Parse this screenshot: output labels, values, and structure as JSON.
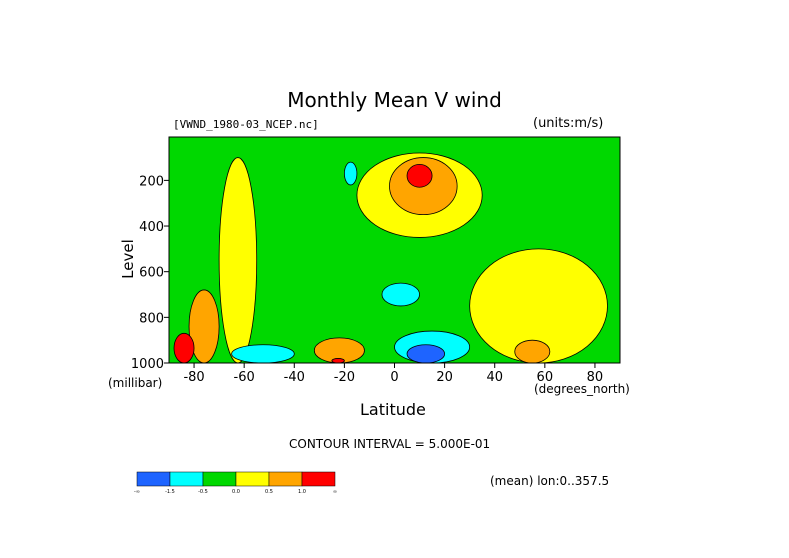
{
  "chart_data": {
    "type": "heatmap",
    "title": "Monthly Mean V wind",
    "dataset": "[VWND_1980-03_NCEP.nc]",
    "units": "(units:m/s)",
    "xlabel": "Latitude",
    "xunit": "(degrees_north)",
    "ylabel": "Level",
    "yunit": "(millibar)",
    "xlim": [
      -90,
      90
    ],
    "ylim": [
      1000,
      10
    ],
    "x_ticks": [
      -80,
      -60,
      -40,
      -20,
      0,
      20,
      40,
      60,
      80
    ],
    "x_tick_labels": [
      "-80",
      "-60",
      "-40",
      "-20",
      "0",
      "20",
      "40",
      "60",
      "80"
    ],
    "y_ticks": [
      200,
      400,
      600,
      800,
      1000
    ],
    "y_tick_labels": [
      "200",
      "400",
      "600",
      "800",
      "1000"
    ],
    "contour_interval": "CONTOUR INTERVAL = 5.000E-01",
    "mean_note": "(mean) lon:0..357.5",
    "colorbar": {
      "bounds": [
        -1.5,
        -0.5,
        0.0,
        0.5,
        1.0
      ],
      "labels": [
        "-∞",
        "-1.5",
        "-0.5",
        "0.0",
        "0.5",
        "1.0",
        "∞"
      ],
      "colors": [
        "#1e64ff",
        "#00ffff",
        "#00d800",
        "#ffff00",
        "#ffa500",
        "#ff0000"
      ]
    },
    "regions": [
      {
        "level": "green",
        "lat_range": [
          -90,
          90
        ],
        "p_range": [
          1000,
          10
        ]
      },
      {
        "level": "yellow",
        "lat_range": [
          -70,
          -55
        ],
        "p_range": [
          1000,
          100
        ]
      },
      {
        "level": "yellow",
        "lat_range": [
          -15,
          35
        ],
        "p_range": [
          450,
          80
        ]
      },
      {
        "level": "yellow",
        "lat_range": [
          30,
          85
        ],
        "p_range": [
          1000,
          500
        ]
      },
      {
        "level": "orange",
        "lat_range": [
          -2,
          25
        ],
        "p_range": [
          350,
          100
        ]
      },
      {
        "level": "red",
        "lat_range": [
          5,
          15
        ],
        "p_range": [
          230,
          130
        ]
      },
      {
        "level": "orange",
        "lat_range": [
          -82,
          -70
        ],
        "p_range": [
          1000,
          680
        ]
      },
      {
        "level": "red",
        "lat_range": [
          -88,
          -80
        ],
        "p_range": [
          1000,
          870
        ]
      },
      {
        "level": "cyan",
        "lat_range": [
          -65,
          -40
        ],
        "p_range": [
          1000,
          920
        ]
      },
      {
        "level": "cyan",
        "lat_range": [
          -20,
          -15
        ],
        "p_range": [
          220,
          120
        ]
      },
      {
        "level": "cyan",
        "lat_range": [
          -5,
          10
        ],
        "p_range": [
          750,
          650
        ]
      },
      {
        "level": "cyan",
        "lat_range": [
          0,
          30
        ],
        "p_range": [
          1000,
          860
        ]
      },
      {
        "level": "blue",
        "lat_range": [
          5,
          20
        ],
        "p_range": [
          1000,
          920
        ]
      },
      {
        "level": "orange",
        "lat_range": [
          -32,
          -12
        ],
        "p_range": [
          1000,
          890
        ]
      },
      {
        "level": "red",
        "lat_range": [
          -25,
          -20
        ],
        "p_range": [
          1000,
          980
        ]
      },
      {
        "level": "orange",
        "lat_range": [
          48,
          62
        ],
        "p_range": [
          1000,
          900
        ]
      }
    ]
  }
}
